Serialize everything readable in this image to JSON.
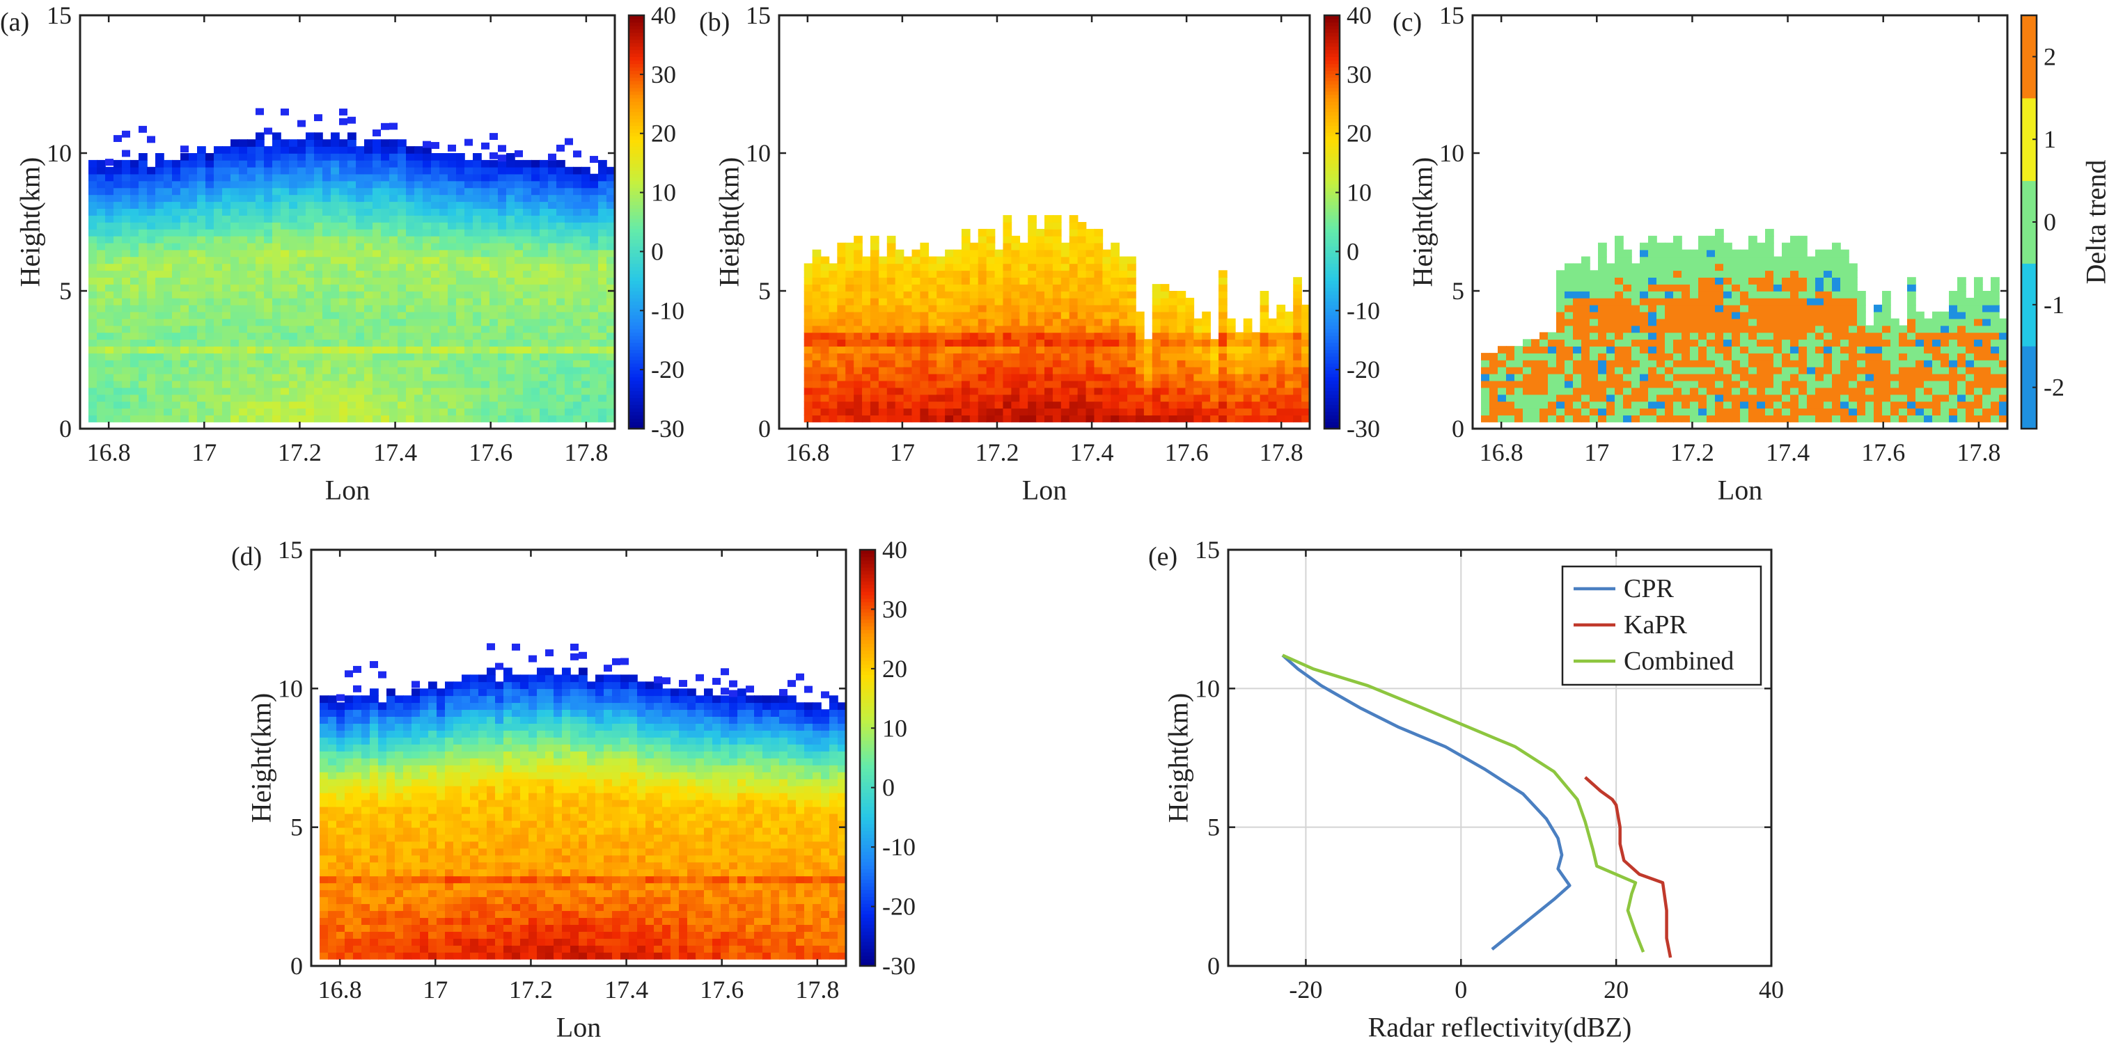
{
  "chart_data": [
    {
      "panel_label": "(a)",
      "type": "heatmap",
      "title": "",
      "xlabel": "Lon",
      "ylabel": "Height(km)",
      "xlim": [
        16.74,
        17.86
      ],
      "ylim": [
        0,
        15
      ],
      "xticks": [
        "16.8",
        "17",
        "17.2",
        "17.4",
        "17.6",
        "17.8"
      ],
      "yticks": [
        "0",
        "5",
        "10",
        "15"
      ],
      "colorbar": {
        "min": -30,
        "max": 40,
        "ticks": [
          "40",
          "30",
          "20",
          "10",
          "0",
          "-10",
          "-20",
          "-30"
        ],
        "label": ""
      },
      "field": {
        "top_km": 10.3,
        "base_value": 2,
        "mid_value": 10,
        "top_value": -25,
        "core_value": 14,
        "melting_layer_km": 2.9
      }
    },
    {
      "panel_label": "(b)",
      "type": "heatmap",
      "title": "",
      "xlabel": "Lon",
      "ylabel": "Height(km)",
      "xlim": [
        16.74,
        17.86
      ],
      "ylim": [
        0,
        15
      ],
      "xticks": [
        "16.8",
        "17",
        "17.2",
        "17.4",
        "17.6",
        "17.8"
      ],
      "yticks": [
        "0",
        "5",
        "10",
        "15"
      ],
      "colorbar": {
        "min": -30,
        "max": 40,
        "ticks": [
          "40",
          "30",
          "20",
          "10",
          "0",
          "-10",
          "-20",
          "-30"
        ],
        "label": ""
      },
      "field": {
        "top_km": 6.5,
        "base_value": 34,
        "mid_value": 24,
        "top_value": 18,
        "core_value": 38,
        "melting_layer_km": 3.3
      }
    },
    {
      "panel_label": "(c)",
      "type": "heatmap",
      "title": "",
      "xlabel": "Lon",
      "ylabel": "Height(km)",
      "xlim": [
        16.74,
        17.86
      ],
      "ylim": [
        0,
        15
      ],
      "xticks": [
        "16.8",
        "17",
        "17.2",
        "17.4",
        "17.6",
        "17.8"
      ],
      "yticks": [
        "0",
        "5",
        "10",
        "15"
      ],
      "colorbar": {
        "min": -2.5,
        "max": 2.5,
        "ticks": [
          "2",
          "1",
          "0",
          "-1",
          "-2"
        ],
        "label": "Delta trend"
      },
      "categories": [
        -2,
        -1,
        0,
        1,
        2
      ],
      "category_colors": [
        "#1e90e0",
        "#22c8e6",
        "#7fe889",
        "#f2ee1c",
        "#f77f0e"
      ]
    },
    {
      "panel_label": "(d)",
      "type": "heatmap",
      "title": "",
      "xlabel": "Lon",
      "ylabel": "Height(km)",
      "xlim": [
        16.74,
        17.86
      ],
      "ylim": [
        0,
        15
      ],
      "xticks": [
        "16.8",
        "17",
        "17.2",
        "17.4",
        "17.6",
        "17.8"
      ],
      "yticks": [
        "0",
        "5",
        "10",
        "15"
      ],
      "colorbar": {
        "min": -30,
        "max": 40,
        "ticks": [
          "40",
          "30",
          "20",
          "10",
          "0",
          "-10",
          "-20",
          "-30"
        ],
        "label": ""
      },
      "field": {
        "top_km": 10.3,
        "base_value": 30,
        "mid_value": 20,
        "top_value": -25,
        "core_value": 37,
        "melting_layer_km": 3.1
      }
    },
    {
      "panel_label": "(e)",
      "type": "line",
      "title": "",
      "xlabel": "Radar reflectivity(dBZ)",
      "ylabel": "Height(km)",
      "xlim": [
        -30,
        40
      ],
      "ylim": [
        0,
        15
      ],
      "xticks": [
        "-20",
        "0",
        "20",
        "40"
      ],
      "yticks": [
        "0",
        "5",
        "10",
        "15"
      ],
      "grid": true,
      "legend_position": "top-right",
      "series": [
        {
          "name": "CPR",
          "color": "#4a7fc1",
          "x": [
            4,
            8,
            12,
            14,
            13,
            12.5,
            13,
            12.5,
            11,
            8,
            3,
            -2,
            -8,
            -13,
            -18,
            -21,
            -23
          ],
          "y": [
            0.6,
            1.5,
            2.4,
            2.9,
            3.3,
            3.5,
            4.0,
            4.6,
            5.3,
            6.2,
            7.1,
            7.9,
            8.6,
            9.3,
            10.1,
            10.7,
            11.2
          ]
        },
        {
          "name": "KaPR",
          "color": "#c0392b",
          "x": [
            27,
            26.5,
            26.5,
            26,
            23,
            21,
            20.5,
            20.5,
            20,
            19.5,
            18,
            16
          ],
          "y": [
            0.3,
            1.0,
            2.0,
            3.0,
            3.3,
            3.8,
            4.4,
            5.0,
            5.8,
            6.0,
            6.3,
            6.8
          ]
        },
        {
          "name": "Combined",
          "color": "#8dc63f",
          "x": [
            23.5,
            22.5,
            21.5,
            22,
            22.5,
            20,
            17.5,
            17,
            16,
            15,
            12,
            7,
            1,
            -5,
            -12,
            -19,
            -23
          ],
          "y": [
            0.5,
            1.2,
            2.0,
            2.6,
            3.0,
            3.3,
            3.6,
            4.2,
            5.2,
            6.0,
            7.0,
            7.9,
            8.6,
            9.3,
            10.1,
            10.7,
            11.2
          ]
        }
      ]
    }
  ]
}
